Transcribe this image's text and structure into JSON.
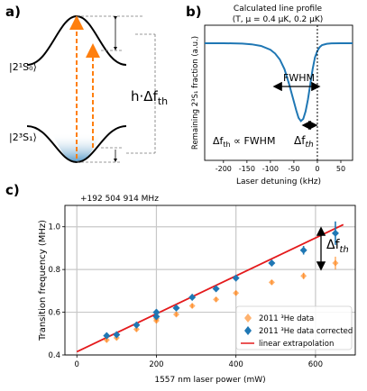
{
  "panels": {
    "a": {
      "letter": "a)",
      "state_upper": "|2¹S₀⟩",
      "state_lower": "|2³S₁⟩",
      "shift_label_prefix": "h·Δf",
      "shift_label_sub": "th"
    },
    "b": {
      "letter": "b)",
      "title_line1": "Calculated line profile",
      "title_line2": "(T, μ = 0.4 μK, 0.2 μK)",
      "annotation_fwhm": "FWHM",
      "annotation_prop": "Δf",
      "annotation_prop_sub": "th",
      "annotation_prop_rest": " ∝ FWHM",
      "annotation_shift": "Δf",
      "annotation_shift_sub": "th"
    },
    "c": {
      "letter": "c)",
      "annotation_shift": "Δf",
      "annotation_shift_sub": "th"
    }
  },
  "chart_data": [
    {
      "id": "b",
      "type": "line",
      "xlabel": "Laser detuning (kHz)",
      "ylabel": "Remaining 2³S₁ fraction (a.u.)",
      "xlim": [
        -240,
        75
      ],
      "xticks": [
        -200,
        -150,
        -100,
        -50,
        0,
        50
      ],
      "yticks": [],
      "grid": false,
      "series": [
        {
          "color": "#1f77b4",
          "x": [
            -240,
            -220,
            -200,
            -180,
            -160,
            -140,
            -120,
            -100,
            -90,
            -80,
            -70,
            -60,
            -50,
            -45,
            -40,
            -35,
            -30,
            -25,
            -20,
            -15,
            -10,
            -5,
            0,
            5,
            10,
            20,
            30,
            50,
            75
          ],
          "y": [
            1.0,
            1.0,
            1.0,
            0.999,
            0.997,
            0.99,
            0.975,
            0.94,
            0.905,
            0.85,
            0.76,
            0.62,
            0.46,
            0.38,
            0.31,
            0.28,
            0.3,
            0.37,
            0.48,
            0.62,
            0.76,
            0.87,
            0.93,
            0.965,
            0.983,
            0.995,
            0.999,
            1.0,
            1.0
          ]
        }
      ],
      "vline_x": 0
    },
    {
      "id": "c",
      "type": "scatter",
      "top_label": "+192 504 914 MHz",
      "xlabel": "1557 nm laser power (mW)",
      "ylabel": "Transition frequency (MHz)",
      "xlim": [
        -30,
        700
      ],
      "ylim": [
        0.4,
        1.1
      ],
      "xticks": [
        0,
        200,
        400,
        600
      ],
      "yticks": [
        0.4,
        0.6,
        0.8,
        1.0
      ],
      "grid": true,
      "legend_position": "bottom-right",
      "series": [
        {
          "name": "2011 ³He data",
          "color": "#ff7f0e",
          "x": [
            75,
            100,
            150,
            200,
            200,
            250,
            290,
            350,
            400,
            490,
            570,
            650
          ],
          "y": [
            0.47,
            0.48,
            0.52,
            0.56,
            0.57,
            0.59,
            0.63,
            0.66,
            0.69,
            0.74,
            0.77,
            0.83
          ],
          "err": [
            0.01,
            0.01,
            0.01,
            0.01,
            0.01,
            0.01,
            0.01,
            0.01,
            0.01,
            0.01,
            0.015,
            0.03
          ]
        },
        {
          "name": "2011 ³He data corrected",
          "color": "#1f77b4",
          "x": [
            75,
            100,
            150,
            200,
            200,
            250,
            290,
            350,
            400,
            490,
            570,
            650
          ],
          "y": [
            0.49,
            0.495,
            0.54,
            0.58,
            0.6,
            0.62,
            0.67,
            0.71,
            0.76,
            0.83,
            0.89,
            0.97
          ],
          "err": [
            0.015,
            0.015,
            0.015,
            0.015,
            0.015,
            0.015,
            0.015,
            0.015,
            0.015,
            0.015,
            0.02,
            0.055
          ]
        },
        {
          "name": "linear extrapolation",
          "color": "#e41a1c",
          "type": "line",
          "x": [
            0,
            670
          ],
          "y": [
            0.415,
            1.01
          ]
        }
      ]
    }
  ]
}
